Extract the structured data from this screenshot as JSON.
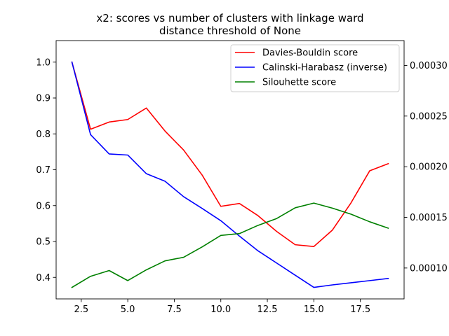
{
  "chart_data": {
    "type": "line",
    "title": "x2: scores vs number of clusters with linkage ward",
    "subtitle": "distance threshold of None",
    "xlabel": "",
    "ylabel": "",
    "xlim": [
      1.15,
      19.85
    ],
    "ylim": [
      0.34,
      1.06
    ],
    "y2lim": [
      6.95e-05,
      0.0003245
    ],
    "x_ticks": [
      2.5,
      5.0,
      7.5,
      10.0,
      12.5,
      15.0,
      17.5
    ],
    "x_tick_labels": [
      "2.5",
      "5.0",
      "7.5",
      "10.0",
      "12.5",
      "15.0",
      "17.5"
    ],
    "y_ticks": [
      0.4,
      0.5,
      0.6,
      0.7,
      0.8,
      0.9,
      1.0
    ],
    "y_tick_labels": [
      "0.4",
      "0.5",
      "0.6",
      "0.7",
      "0.8",
      "0.9",
      "1.0"
    ],
    "y2_ticks": [
      0.0001,
      0.00015,
      0.0002,
      0.00025,
      0.0003
    ],
    "y2_tick_labels": [
      "0.00010",
      "0.00015",
      "0.00020",
      "0.00025",
      "0.00030"
    ],
    "grid": false,
    "legend_placement": "top-right",
    "x": [
      2,
      3,
      4,
      5,
      6,
      7,
      8,
      9,
      10,
      11,
      12,
      13,
      14,
      15,
      16,
      17,
      18,
      19
    ],
    "series": [
      {
        "name": "Davies-Bouldin score",
        "color": "#ff0000",
        "axis": "left",
        "values": [
          1.0,
          0.813,
          0.833,
          0.84,
          0.872,
          0.808,
          0.755,
          0.685,
          0.598,
          0.606,
          0.572,
          0.528,
          0.491,
          0.486,
          0.532,
          0.608,
          0.697,
          0.717
        ]
      },
      {
        "name": "Calinski-Harabasz (inverse)",
        "color": "#0000ff",
        "axis": "left",
        "values": [
          1.0,
          0.798,
          0.744,
          0.741,
          0.689,
          0.668,
          0.625,
          0.592,
          0.558,
          0.515,
          0.474,
          0.44,
          0.406,
          0.372,
          0.379,
          0.385,
          0.391,
          0.397
        ]
      },
      {
        "name": "Silouhette score",
        "color": "#008000",
        "axis": "left",
        "values": [
          0.372,
          0.403,
          0.419,
          0.391,
          0.421,
          0.446,
          0.456,
          0.485,
          0.517,
          0.522,
          0.545,
          0.564,
          0.594,
          0.607,
          0.593,
          0.576,
          0.555,
          0.537
        ]
      }
    ]
  }
}
